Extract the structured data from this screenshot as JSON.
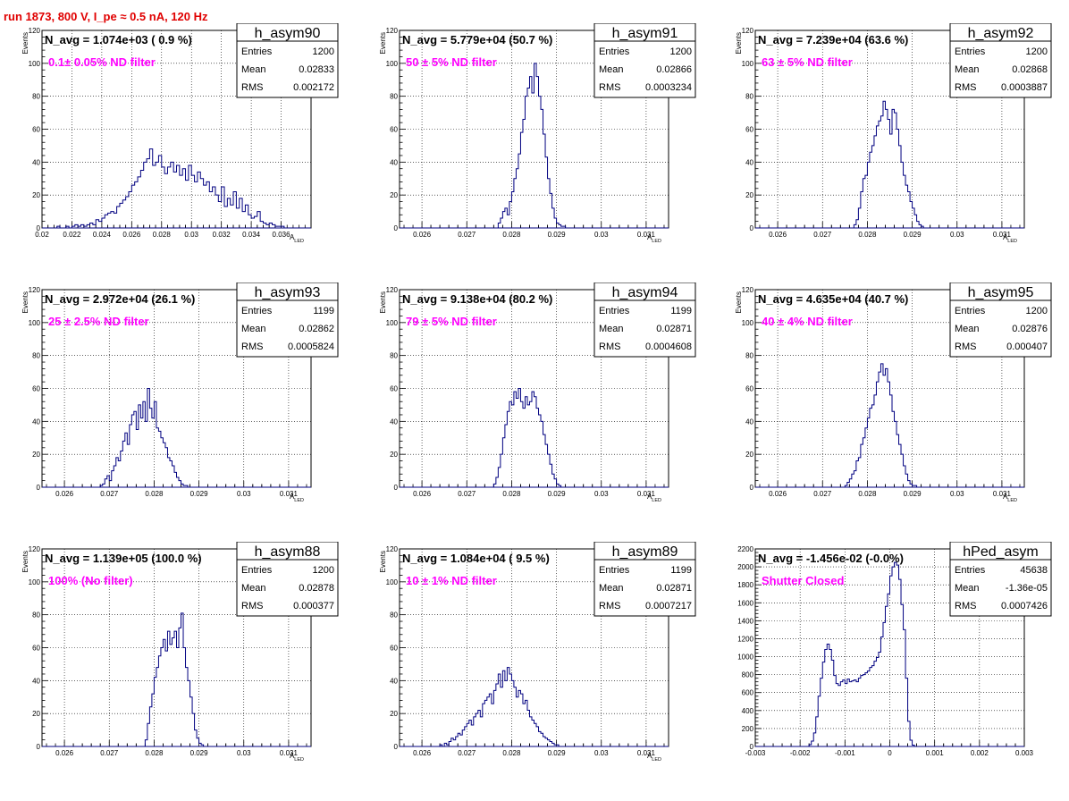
{
  "run_title": "run 1873,   800 V, I_pe ≈ 0.5 nA, 120 Hz",
  "colors": {
    "title": "#e00000",
    "annotation": "#ff00ff",
    "histogram": "#000080"
  },
  "chart_data": [
    {
      "type": "histogram",
      "name": "h_asym90",
      "n_avg": "N_avg = 1.074e+03 ( 0.9 %)",
      "filter_label": "0.1± 0.05% ND filter",
      "stats": {
        "entries": "1200",
        "mean": "0.02833",
        "rms": "0.002172"
      },
      "ylabel": "Events",
      "xlabel": "A",
      "xlabel_sub": "LED",
      "xlim": [
        0.02,
        0.038
      ],
      "ylim": [
        0,
        120
      ],
      "xticks": [
        "0.02",
        "0.022",
        "0.024",
        "0.026",
        "0.028",
        "0.03",
        "0.032",
        "0.034",
        "0.036"
      ],
      "yticks": [
        "0",
        "20",
        "40",
        "60",
        "80",
        "100",
        "120"
      ],
      "bins": {
        "start": 0.021,
        "width": 0.0002,
        "counts": [
          1,
          0,
          0,
          1,
          0,
          1,
          2,
          1,
          2,
          1,
          2,
          3,
          2,
          5,
          4,
          6,
          8,
          9,
          10,
          9,
          13,
          15,
          17,
          19,
          22,
          26,
          28,
          31,
          35,
          40,
          42,
          48,
          38,
          40,
          44,
          37,
          33,
          37,
          40,
          34,
          38,
          32,
          36,
          29,
          38,
          32,
          28,
          34,
          30,
          26,
          28,
          22,
          25,
          20,
          16,
          25,
          13,
          18,
          14,
          22,
          12,
          18,
          10,
          14,
          8,
          6,
          7,
          10,
          4,
          3,
          2,
          3,
          2,
          1,
          1,
          1
        ]
      }
    },
    {
      "type": "histogram",
      "name": "h_asym91",
      "n_avg": "N_avg = 5.779e+04 (50.7 %)",
      "filter_label": "50 ± 5% ND filter",
      "stats": {
        "entries": "1200",
        "mean": "0.02866",
        "rms": "0.0003234"
      },
      "ylabel": "Events",
      "xlabel": "A",
      "xlabel_sub": "LED",
      "xlim": [
        0.0255,
        0.0315
      ],
      "ylim": [
        0,
        120
      ],
      "xticks": [
        "0.026",
        "0.027",
        "0.028",
        "0.029",
        "0.03",
        "0.031"
      ],
      "yticks": [
        "0",
        "20",
        "40",
        "60",
        "80",
        "100",
        "120"
      ],
      "bins": {
        "start": 0.0277,
        "width": 5e-05,
        "counts": [
          3,
          6,
          10,
          12,
          8,
          16,
          22,
          30,
          36,
          45,
          58,
          66,
          80,
          85,
          92,
          82,
          100,
          92,
          80,
          72,
          57,
          43,
          30,
          21,
          12,
          6,
          3,
          2,
          1,
          1
        ]
      }
    },
    {
      "type": "histogram",
      "name": "h_asym92",
      "n_avg": "N_avg = 7.239e+04 (63.6 %)",
      "filter_label": "63 ± 5% ND filter",
      "stats": {
        "entries": "1200",
        "mean": "0.02868",
        "rms": "0.0003887"
      },
      "ylabel": "Events",
      "xlabel": "A",
      "xlabel_sub": "LED",
      "xlim": [
        0.0255,
        0.0315
      ],
      "ylim": [
        0,
        120
      ],
      "xticks": [
        "0.026",
        "0.027",
        "0.028",
        "0.029",
        "0.03",
        "0.031"
      ],
      "yticks": [
        "0",
        "20",
        "40",
        "60",
        "80",
        "100",
        "120"
      ],
      "bins": {
        "start": 0.0277,
        "width": 5e-05,
        "counts": [
          2,
          5,
          12,
          22,
          30,
          32,
          40,
          46,
          50,
          56,
          62,
          65,
          68,
          77,
          72,
          66,
          57,
          72,
          70,
          60,
          50,
          40,
          32,
          26,
          22,
          16,
          12,
          8,
          4,
          2,
          1
        ]
      }
    },
    {
      "type": "histogram",
      "name": "h_asym93",
      "n_avg": "N_avg = 2.972e+04 (26.1 %)",
      "filter_label": "25 ± 2.5% ND filter",
      "stats": {
        "entries": "1199",
        "mean": "0.02862",
        "rms": "0.0005824"
      },
      "ylabel": "Events",
      "xlabel": "A",
      "xlabel_sub": "LED",
      "xlim": [
        0.0255,
        0.0315
      ],
      "ylim": [
        0,
        120
      ],
      "xticks": [
        "0.026",
        "0.027",
        "0.028",
        "0.029",
        "0.03",
        "0.031"
      ],
      "yticks": [
        "0",
        "20",
        "40",
        "60",
        "80",
        "100",
        "120"
      ],
      "bins": {
        "start": 0.0268,
        "width": 5e-05,
        "counts": [
          1,
          2,
          5,
          7,
          4,
          10,
          13,
          18,
          16,
          22,
          28,
          33,
          26,
          38,
          44,
          46,
          35,
          50,
          42,
          52,
          40,
          60,
          48,
          42,
          52,
          36,
          34,
          30,
          27,
          24,
          18,
          16,
          13,
          9,
          6,
          4,
          2,
          1,
          1
        ]
      }
    },
    {
      "type": "histogram",
      "name": "h_asym94",
      "n_avg": "N_avg = 9.138e+04 (80.2 %)",
      "filter_label": "79 ± 5% ND filter",
      "stats": {
        "entries": "1199",
        "mean": "0.02871",
        "rms": "0.0004608"
      },
      "ylabel": "Events",
      "xlabel": "A",
      "xlabel_sub": "LED",
      "xlim": [
        0.0255,
        0.0315
      ],
      "ylim": [
        0,
        120
      ],
      "xticks": [
        "0.026",
        "0.027",
        "0.028",
        "0.029",
        "0.03",
        "0.031"
      ],
      "yticks": [
        "0",
        "20",
        "40",
        "60",
        "80",
        "100",
        "120"
      ],
      "bins": {
        "start": 0.0276,
        "width": 5e-05,
        "counts": [
          2,
          6,
          12,
          20,
          30,
          38,
          46,
          52,
          50,
          58,
          54,
          60,
          52,
          48,
          55,
          50,
          52,
          58,
          55,
          48,
          44,
          40,
          32,
          26,
          20,
          14,
          8,
          5,
          2,
          1
        ]
      }
    },
    {
      "type": "histogram",
      "name": "h_asym95",
      "n_avg": "N_avg = 4.635e+04 (40.7 %)",
      "filter_label": "40 ± 4% ND filter",
      "stats": {
        "entries": "1200",
        "mean": "0.02876",
        "rms": "0.000407"
      },
      "ylabel": "Events",
      "xlabel": "A",
      "xlabel_sub": "LED",
      "xlim": [
        0.0255,
        0.0315
      ],
      "ylim": [
        0,
        120
      ],
      "xticks": [
        "0.026",
        "0.027",
        "0.028",
        "0.029",
        "0.03",
        "0.031"
      ],
      "yticks": [
        "0",
        "20",
        "40",
        "60",
        "80",
        "100",
        "120"
      ],
      "bins": {
        "start": 0.0275,
        "width": 5e-05,
        "counts": [
          1,
          3,
          5,
          8,
          10,
          16,
          18,
          26,
          30,
          36,
          42,
          48,
          50,
          56,
          64,
          70,
          75,
          68,
          72,
          64,
          56,
          46,
          40,
          32,
          26,
          20,
          13,
          8,
          4,
          2,
          1,
          1
        ]
      }
    },
    {
      "type": "histogram",
      "name": "h_asym88",
      "n_avg": "N_avg = 1.139e+05 (100.0 %)",
      "filter_label": "100% (No filter)",
      "stats": {
        "entries": "1200",
        "mean": "0.02878",
        "rms": "0.000377"
      },
      "ylabel": "Events",
      "xlabel": "A",
      "xlabel_sub": "LED",
      "xlim": [
        0.0255,
        0.0315
      ],
      "ylim": [
        0,
        120
      ],
      "xticks": [
        "0.026",
        "0.027",
        "0.028",
        "0.029",
        "0.03",
        "0.031"
      ],
      "yticks": [
        "0",
        "20",
        "40",
        "60",
        "80",
        "100",
        "120"
      ],
      "bins": {
        "start": 0.0278,
        "width": 5e-05,
        "counts": [
          4,
          14,
          24,
          32,
          42,
          48,
          55,
          60,
          65,
          58,
          70,
          62,
          66,
          70,
          60,
          72,
          81,
          60,
          48,
          40,
          30,
          20,
          10,
          5,
          2,
          1
        ]
      }
    },
    {
      "type": "histogram",
      "name": "h_asym89",
      "n_avg": "N_avg = 1.084e+04 ( 9.5 %)",
      "filter_label": "10 ± 1% ND filter",
      "stats": {
        "entries": "1199",
        "mean": "0.02871",
        "rms": "0.0007217"
      },
      "ylabel": "Events",
      "xlabel": "A",
      "xlabel_sub": "LED",
      "xlim": [
        0.0255,
        0.0315
      ],
      "ylim": [
        0,
        120
      ],
      "xticks": [
        "0.026",
        "0.027",
        "0.028",
        "0.029",
        "0.03",
        "0.031"
      ],
      "yticks": [
        "0",
        "20",
        "40",
        "60",
        "80",
        "100",
        "120"
      ],
      "bins": {
        "start": 0.0264,
        "width": 5e-05,
        "counts": [
          1,
          0,
          2,
          1,
          3,
          5,
          4,
          6,
          8,
          7,
          10,
          12,
          14,
          16,
          13,
          18,
          20,
          22,
          18,
          26,
          28,
          30,
          32,
          26,
          34,
          38,
          44,
          36,
          46,
          40,
          48,
          44,
          40,
          36,
          30,
          34,
          32,
          26,
          28,
          22,
          18,
          16,
          14,
          12,
          9,
          8,
          6,
          5,
          4,
          3,
          2,
          1,
          1
        ]
      }
    },
    {
      "type": "histogram",
      "name": "hPed_asym",
      "n_avg": "N_avg = -1.456e-02 (-0.0%)",
      "filter_label": "Shutter Closed",
      "stats": {
        "entries": "45638",
        "mean": "-1.36e-05",
        "rms": "0.0007426"
      },
      "ylabel": "",
      "xlabel": "",
      "xlabel_sub": "",
      "xlim": [
        -0.003,
        0.003
      ],
      "ylim": [
        0,
        2200
      ],
      "xticks": [
        "-0.003",
        "-0.002",
        "-0.001",
        "0",
        "0.001",
        "0.002",
        "0.003"
      ],
      "yticks": [
        "0",
        "200",
        "400",
        "600",
        "800",
        "1000",
        "1200",
        "1400",
        "1600",
        "1800",
        "2000",
        "2200"
      ],
      "bins": {
        "start": -0.0018,
        "width": 5e-05,
        "counts": [
          20,
          60,
          150,
          330,
          560,
          760,
          940,
          1080,
          1140,
          1080,
          960,
          790,
          700,
          680,
          720,
          740,
          700,
          750,
          720,
          730,
          740,
          720,
          760,
          790,
          800,
          820,
          840,
          880,
          900,
          950,
          990,
          1050,
          1220,
          1380,
          1560,
          1700,
          1900,
          2000,
          2050,
          2020,
          1860,
          1580,
          1300,
          760,
          280,
          70,
          15
        ]
      }
    }
  ]
}
